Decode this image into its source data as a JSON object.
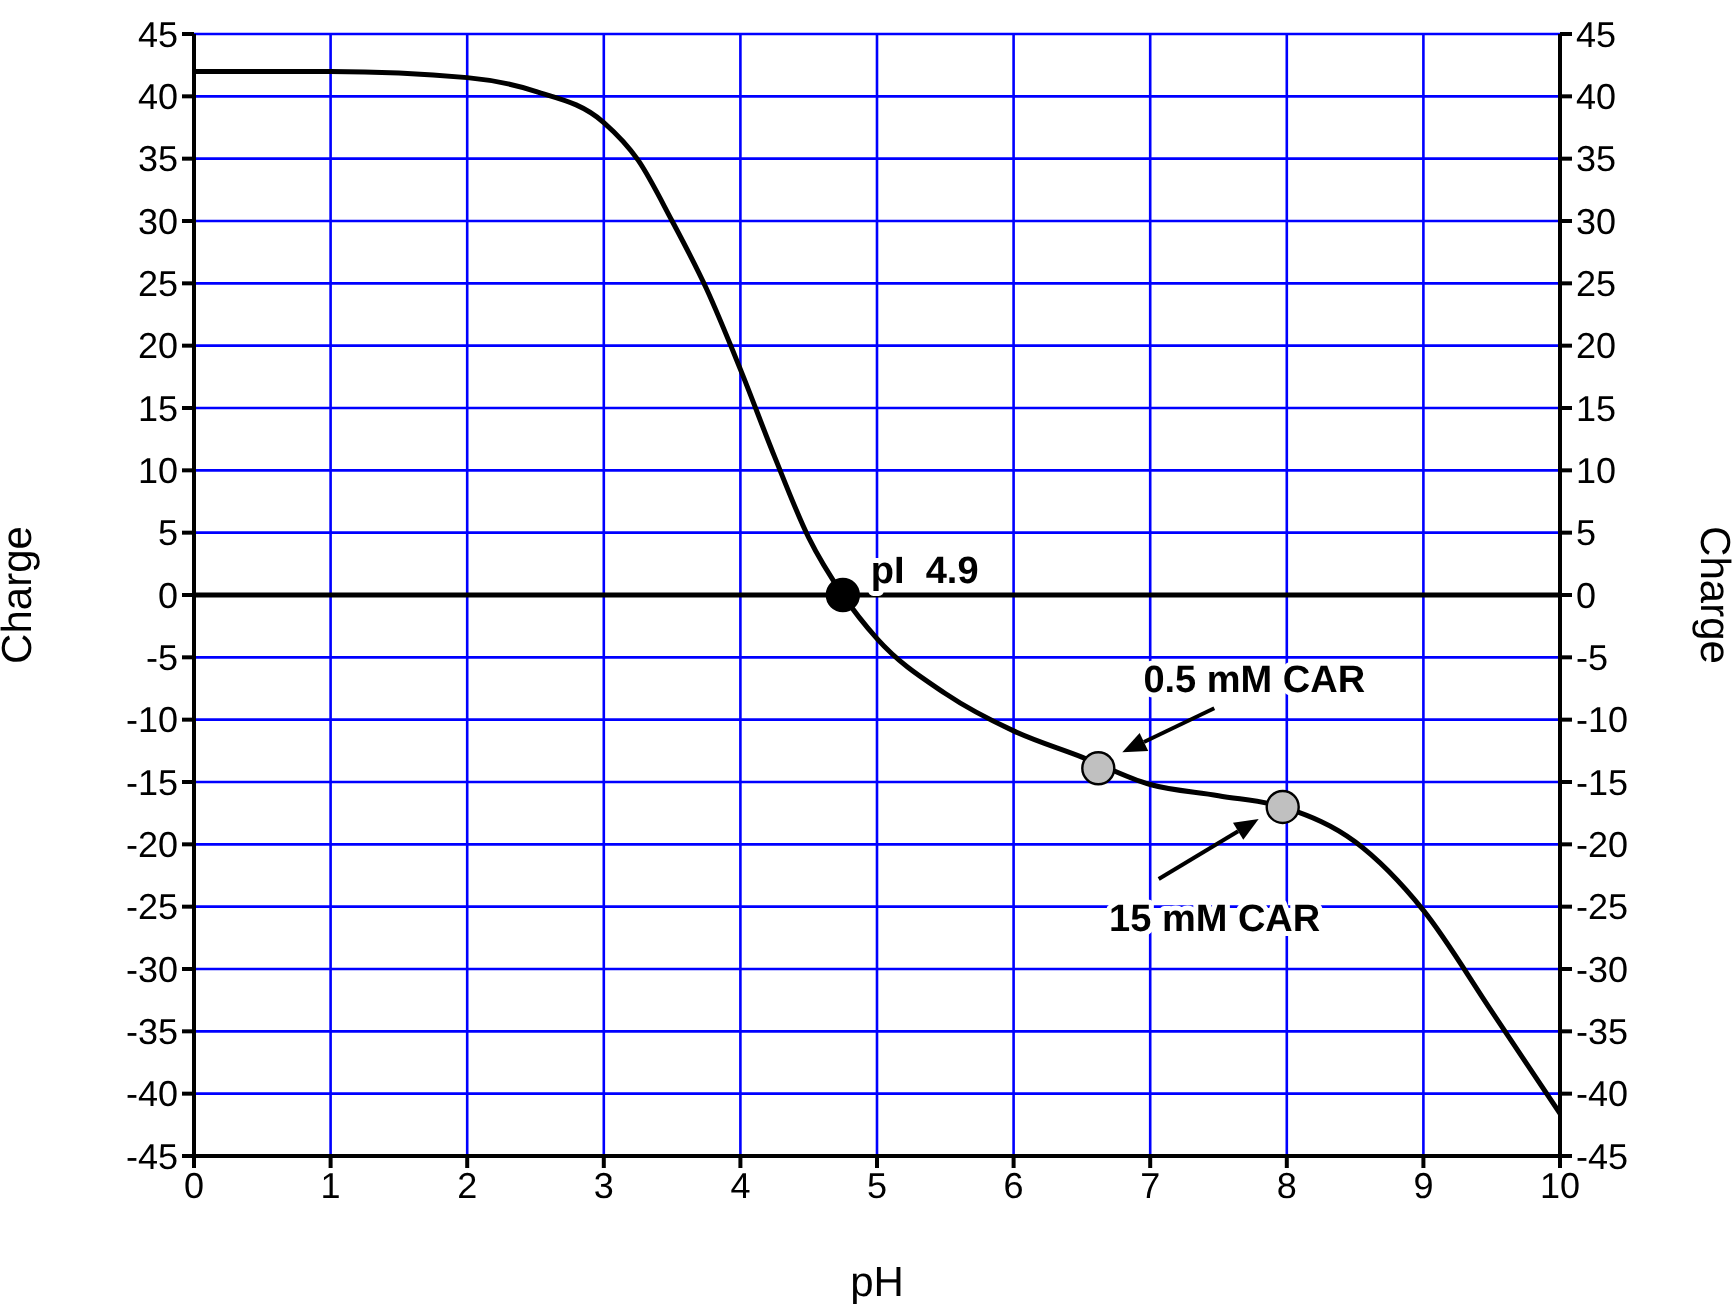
{
  "chart_data": {
    "type": "line",
    "xlabel": "pH",
    "ylabel": "Charge",
    "y2label": "Charge",
    "xlim": [
      0,
      10
    ],
    "xticks": [
      0,
      1,
      2,
      3,
      4,
      5,
      6,
      7,
      8,
      9,
      10
    ],
    "ylim": [
      -45,
      45
    ],
    "yticks": [
      -45,
      -40,
      -35,
      -30,
      -25,
      -20,
      -15,
      -10,
      -5,
      0,
      5,
      10,
      15,
      20,
      25,
      30,
      35,
      40,
      45
    ],
    "y2lim": [
      -45,
      45
    ],
    "y2ticks": [
      -45,
      -40,
      -35,
      -30,
      -25,
      -20,
      -15,
      -10,
      -5,
      0,
      5,
      10,
      15,
      20,
      25,
      30,
      35,
      40,
      45
    ],
    "grid": true,
    "marker": "none",
    "line_style": "solid",
    "series": [
      {
        "type": "line",
        "color": "#000000",
        "x": [
          0,
          1,
          2,
          2.5,
          3,
          3.25,
          3.5,
          3.75,
          4,
          4.25,
          4.5,
          4.75,
          5,
          5.5,
          6,
          6.5,
          7,
          7.5,
          8,
          8.5,
          9,
          9.5,
          10
        ],
        "values": [
          42,
          42,
          41.5,
          40.4,
          37.9,
          34.9,
          30,
          24.6,
          18.1,
          11.1,
          4.6,
          0,
          -3.5,
          -7.9,
          -10.9,
          -13,
          -15.2,
          -16.1,
          -17.1,
          -19.8,
          -25.3,
          -33.4,
          -41.6
        ]
      },
      {
        "type": "scatter",
        "marker": "circle",
        "x": [
          4.75,
          6.62,
          7.97
        ],
        "values": [
          0,
          -13.9,
          -17
        ],
        "colors": [
          "#000000",
          "#c0c0c0",
          "#c0c0c0"
        ]
      }
    ],
    "ref_lines": [
      {
        "axis": "y",
        "value": 0,
        "color": "#000000"
      }
    ],
    "annotations": [
      {
        "text": "pI  4.9",
        "x": 4.75,
        "y": 0
      },
      {
        "text": "0.5 mM CAR",
        "x": 6.62,
        "y": -13.9
      },
      {
        "text": "15 mM CAR",
        "x": 7.97,
        "y": -17
      }
    ]
  }
}
